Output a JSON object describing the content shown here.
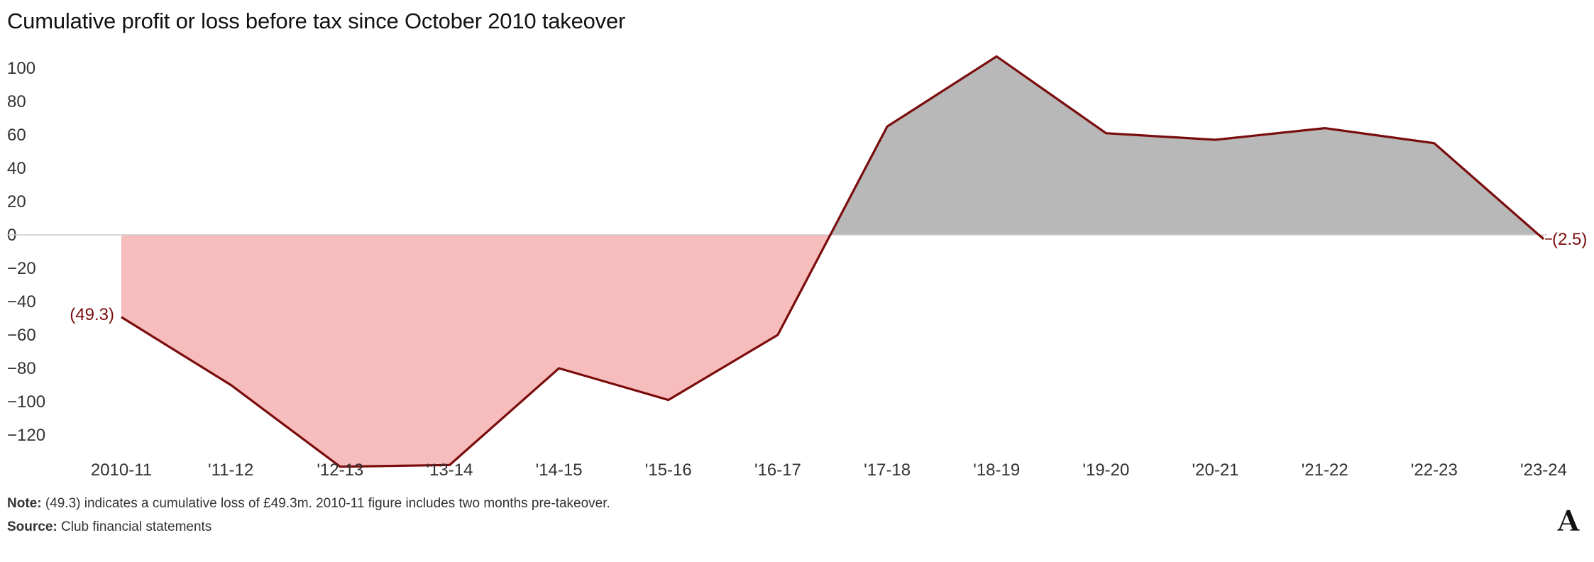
{
  "title": "Cumulative profit or loss before tax since October 2010 takeover",
  "note_label": "Note:",
  "note_text": "(49.3) indicates a cumulative loss of £49.3m. 2010-11 figure includes two months pre-takeover.",
  "source_label": "Source:",
  "source_text": "Club financial statements",
  "colors": {
    "line": "#7a0c0c",
    "loss_fill": "#f7bcbc",
    "profit_fill": "#b8b8b8",
    "baseline": "#cccccc"
  },
  "chart_data": {
    "type": "area",
    "title": "Cumulative profit or loss before tax since October 2010 takeover",
    "categories": [
      "2010-11",
      "'11-12",
      "'12-13",
      "'13-14",
      "'14-15",
      "'15-16",
      "'16-17",
      "'17-18",
      "'18-19",
      "'19-20",
      "'20-21",
      "'21-22",
      "'22-23",
      "'23-24"
    ],
    "series": [
      {
        "values": [
          -49.3,
          -90,
          -139,
          -138,
          -80,
          -99,
          -60,
          65,
          107,
          61,
          57,
          64,
          55,
          -2.5
        ]
      }
    ],
    "yticks": [
      {
        "value": 100,
        "label": "100"
      },
      {
        "value": 80,
        "label": "80"
      },
      {
        "value": 60,
        "label": "60"
      },
      {
        "value": 40,
        "label": "40"
      },
      {
        "value": 20,
        "label": "20"
      },
      {
        "value": 0,
        "label": "0"
      },
      {
        "value": -20,
        "label": "−20"
      },
      {
        "value": -40,
        "label": "−40"
      },
      {
        "value": -60,
        "label": "−60"
      },
      {
        "value": -80,
        "label": "−80"
      },
      {
        "value": -100,
        "label": "−100"
      },
      {
        "value": -120,
        "label": "−120"
      }
    ],
    "ylim": [
      -140,
      108
    ],
    "annotations": [
      {
        "category": "2010-11",
        "text": "(49.3)",
        "side": "left"
      },
      {
        "category": "'23-24",
        "text": "(2.5)",
        "side": "right"
      }
    ],
    "xlabel": "",
    "ylabel": "",
    "grid": false,
    "legend": "none"
  },
  "logo_letter": "A"
}
